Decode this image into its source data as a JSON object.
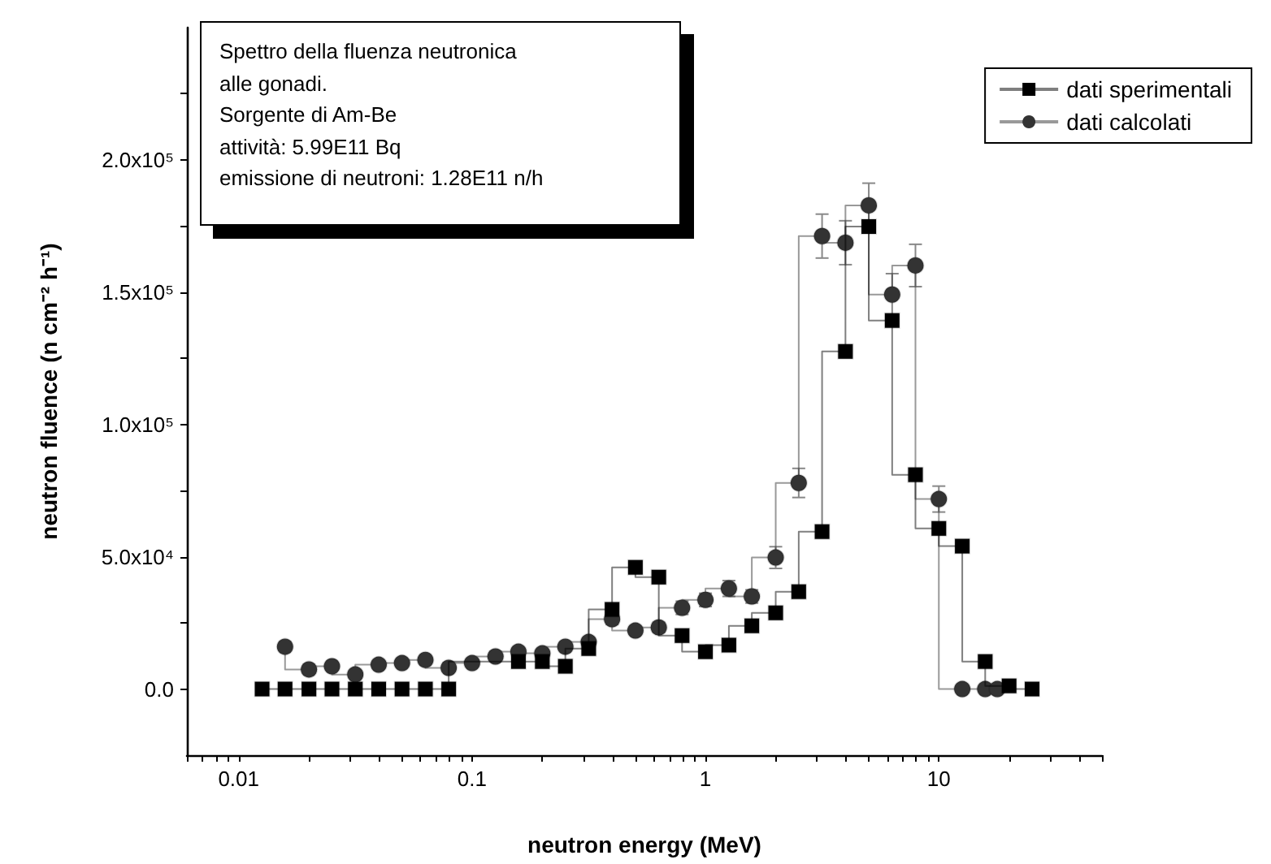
{
  "chart_data": {
    "type": "step",
    "xlabel": "neutron energy (MeV)",
    "ylabel": "neutron fluence (n cm⁻² h⁻¹)",
    "annotations": [
      "Spettro della fluenza neutronica",
      "alle gonadi.",
      "Sorgente di Am-Be",
      "attività: 5.99E11 Bq",
      "emissione di neutroni: 1.28E11 n/h"
    ],
    "log": "x",
    "xlim": [
      0.006,
      50
    ],
    "xticks": [
      {
        "value": 0.006,
        "label": null
      },
      {
        "value": 0.007,
        "label": null
      },
      {
        "value": 0.008,
        "label": null
      },
      {
        "value": 0.009,
        "label": null
      },
      0.01,
      {
        "value": 0.02,
        "label": null
      },
      {
        "value": 0.03,
        "label": null
      },
      {
        "value": 0.04,
        "label": null
      },
      {
        "value": 0.05,
        "label": null
      },
      {
        "value": 0.06,
        "label": null
      },
      {
        "value": 0.07,
        "label": null
      },
      {
        "value": 0.08,
        "label": null
      },
      {
        "value": 0.09,
        "label": null
      },
      0.1,
      {
        "value": 0.2,
        "label": null
      },
      {
        "value": 0.3,
        "label": null
      },
      {
        "value": 0.4,
        "label": null
      },
      {
        "value": 0.5,
        "label": null
      },
      {
        "value": 0.6,
        "label": null
      },
      {
        "value": 0.7,
        "label": null
      },
      {
        "value": 0.8,
        "label": null
      },
      {
        "value": 0.9,
        "label": null
      },
      1,
      {
        "value": 2,
        "label": null
      },
      {
        "value": 3,
        "label": null
      },
      {
        "value": 4,
        "label": null
      },
      {
        "value": 5,
        "label": null
      },
      {
        "value": 6,
        "label": null
      },
      {
        "value": 7,
        "label": null
      },
      {
        "value": 8,
        "label": null
      },
      {
        "value": 9,
        "label": null
      },
      10,
      {
        "value": 20,
        "label": null
      },
      {
        "value": 30,
        "label": null
      },
      {
        "value": 40,
        "label": null
      },
      {
        "value": 50,
        "label": null
      }
    ],
    "ylim": [
      -25000,
      250000
    ],
    "yticks": [
      {
        "value": 0,
        "label": "0.0"
      },
      {
        "value": 25000,
        "label": null
      },
      {
        "value": 50000,
        "label": "5.0x10⁴"
      },
      {
        "value": 75000,
        "label": null
      },
      {
        "value": 100000,
        "label": "1.0x10⁵"
      },
      {
        "value": 125000,
        "label": null
      },
      {
        "value": 150000,
        "label": "1.5x10⁵"
      },
      {
        "value": 175000,
        "label": null
      },
      {
        "value": 200000,
        "label": "2.0x10⁵"
      },
      {
        "value": 225000,
        "label": null
      }
    ],
    "grid": false,
    "legend": "top right",
    "series": [
      {
        "name": "dati sperimentali",
        "color": "#000000",
        "marker": "square",
        "x": [
          0.0126,
          0.0158,
          0.02,
          0.0251,
          0.0316,
          0.0398,
          0.0501,
          0.0631,
          0.0794,
          0.1,
          0.126,
          0.158,
          0.2,
          0.251,
          0.316,
          0.398,
          0.501,
          0.631,
          0.794,
          1,
          1.26,
          1.58,
          2,
          2.51,
          3.16,
          3.98,
          5.01,
          6.31,
          7.94,
          10,
          12.6,
          15.8,
          20,
          25.1
        ],
        "values": [
          0,
          0,
          0,
          0,
          0,
          0,
          0,
          0,
          0,
          null,
          null,
          10400,
          10400,
          8600,
          15300,
          30100,
          46000,
          42300,
          20200,
          14100,
          16600,
          23900,
          28800,
          36800,
          59500,
          127600,
          174800,
          139300,
          81000,
          60700,
          54000,
          10400,
          1200,
          0
        ]
      },
      {
        "name": "dati calcolati",
        "color": "#333333",
        "marker": "circle",
        "x": [
          0.0158,
          0.02,
          0.0251,
          0.0316,
          0.0398,
          0.0501,
          0.0631,
          0.0794,
          0.1,
          0.126,
          0.158,
          0.2,
          0.251,
          0.316,
          0.398,
          0.501,
          0.631,
          0.794,
          1,
          1.26,
          1.58,
          2,
          2.51,
          3.16,
          3.98,
          5.01,
          6.31,
          7.94,
          10,
          12.6,
          15.8,
          17.8
        ],
        "values": [
          16000,
          7400,
          8600,
          5500,
          9200,
          9800,
          11000,
          8000,
          9800,
          12300,
          14100,
          13500,
          16000,
          17800,
          26400,
          22100,
          23300,
          30700,
          33700,
          38000,
          35000,
          49700,
          77900,
          171200,
          168700,
          182800,
          149100,
          160100,
          71800,
          0,
          0,
          0
        ],
        "errors": [
          1500,
          1000,
          1000,
          1000,
          1000,
          1000,
          1000,
          1000,
          1000,
          1000,
          1200,
          1200,
          1500,
          1500,
          2000,
          1500,
          1800,
          2500,
          2500,
          3000,
          2500,
          4100,
          5500,
          8300,
          8300,
          8400,
          7900,
          8000,
          4900,
          null,
          null,
          null
        ]
      }
    ]
  }
}
